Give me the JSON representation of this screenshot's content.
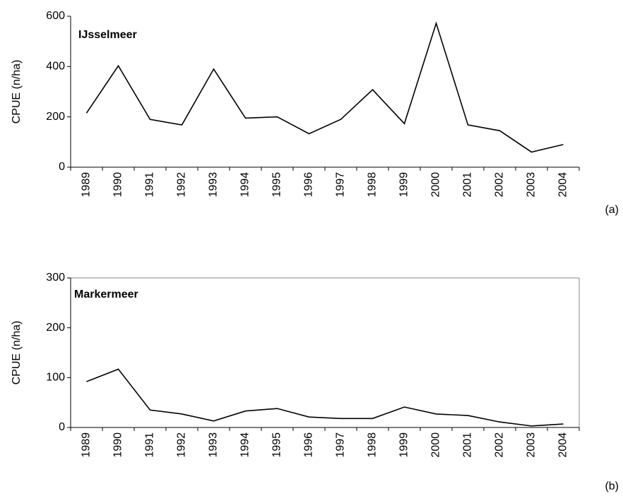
{
  "chart_data": [
    {
      "type": "line",
      "annotation": "IJsselmeer",
      "y_label": "CPUE (n/ha)",
      "panel_label": "(a)",
      "categories": [
        "1989",
        "1990",
        "1991",
        "1992",
        "1993",
        "1994",
        "1995",
        "1996",
        "1997",
        "1998",
        "1999",
        "2000",
        "2001",
        "2002",
        "2003",
        "2004"
      ],
      "values": [
        215,
        403,
        190,
        168,
        390,
        195,
        200,
        133,
        190,
        308,
        173,
        572,
        168,
        145,
        60,
        90
      ],
      "color": "#000000",
      "ylim": [
        0,
        600
      ],
      "yticks": [
        0,
        200,
        400,
        600
      ],
      "frame": false
    },
    {
      "type": "line",
      "annotation": "Markermeer",
      "y_label": "CPUE (n/ha)",
      "panel_label": "(b)",
      "categories": [
        "1989",
        "1990",
        "1991",
        "1992",
        "1993",
        "1994",
        "1995",
        "1996",
        "1997",
        "1998",
        "1999",
        "2000",
        "2001",
        "2002",
        "2003",
        "2004"
      ],
      "values": [
        92,
        117,
        35,
        27,
        13,
        33,
        38,
        21,
        18,
        18,
        41,
        27,
        24,
        11,
        3,
        7
      ],
      "color": "#000000",
      "ylim": [
        0,
        300
      ],
      "yticks": [
        0,
        100,
        200,
        300
      ],
      "frame": true
    }
  ]
}
